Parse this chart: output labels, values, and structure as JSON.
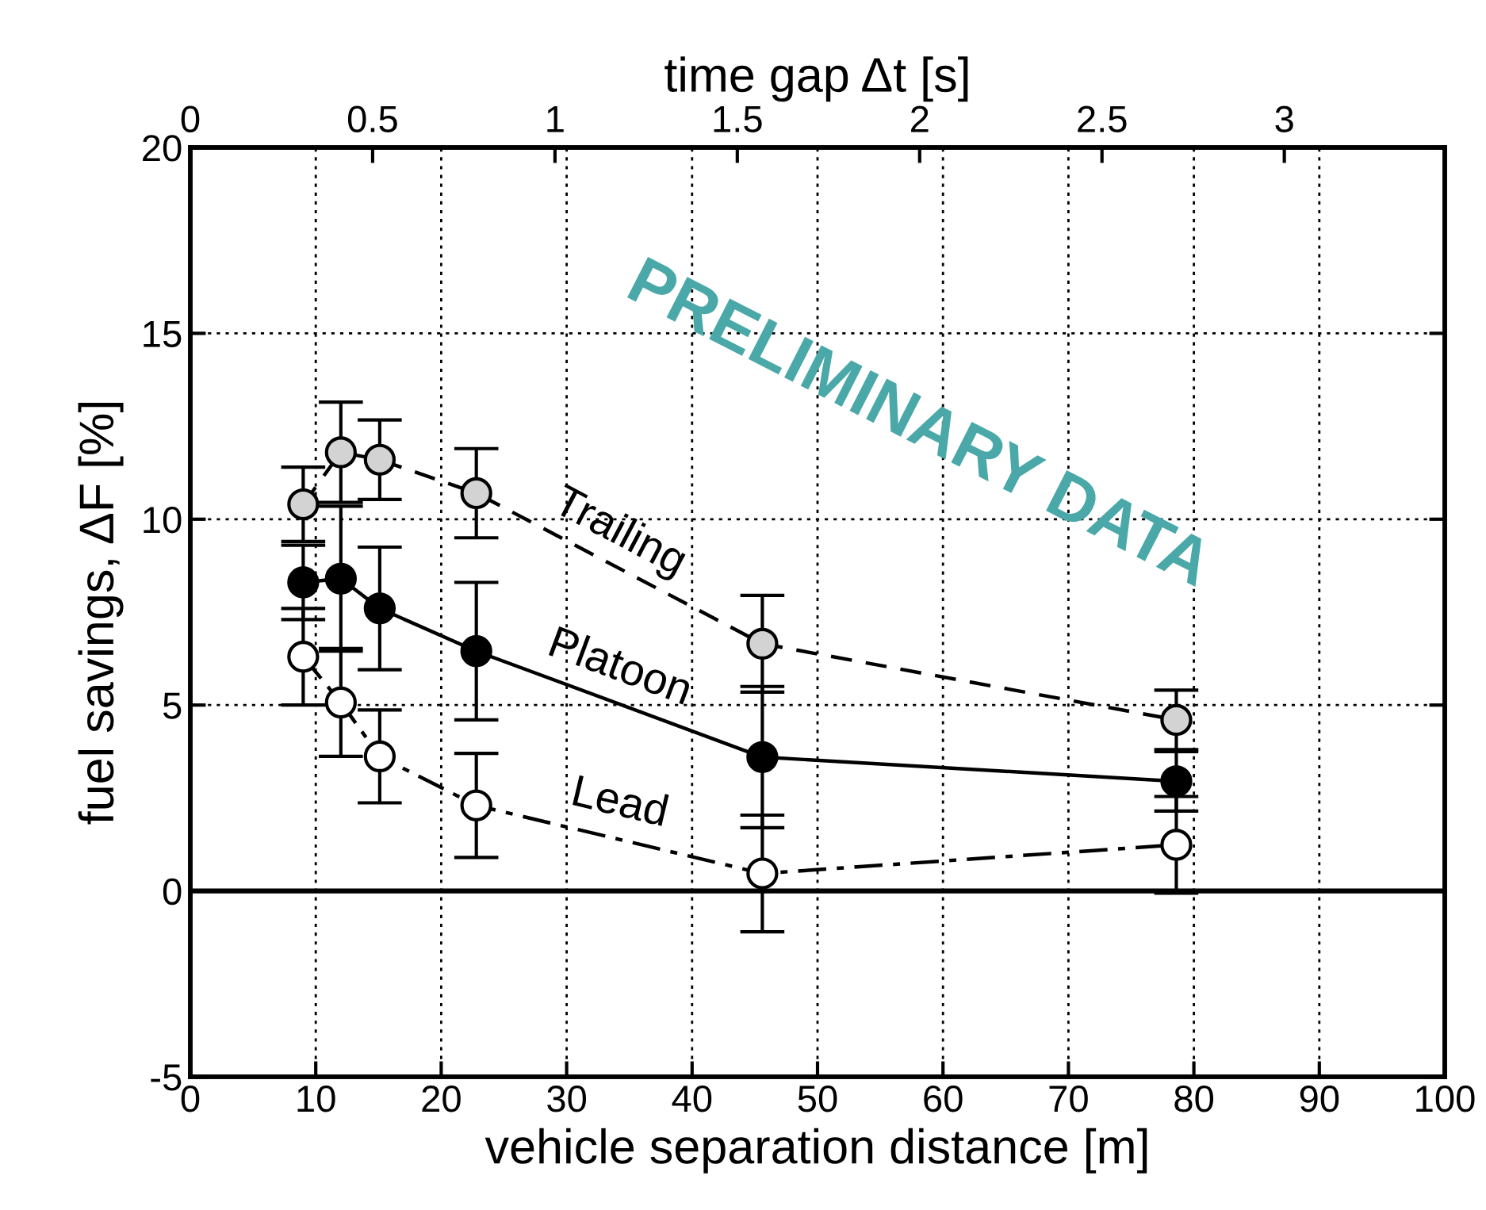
{
  "chart_data": {
    "type": "line",
    "x2label": "time gap Δt [s]",
    "xlabel": "vehicle separation distance [m]",
    "ylabel": "fuel savings, ΔF [%]",
    "xlim": [
      0,
      100
    ],
    "xticks": [
      0,
      10,
      20,
      30,
      40,
      50,
      60,
      70,
      80,
      90,
      100
    ],
    "ylim": [
      -5,
      20
    ],
    "yticks": [
      -5,
      0,
      5,
      10,
      15,
      20
    ],
    "x2lim": [
      0,
      3.44
    ],
    "x2ticks": [
      0,
      0.5,
      1,
      1.5,
      2,
      2.5,
      3
    ],
    "grid": true,
    "marker": "circle",
    "ref_lines": [
      {
        "axis": "y",
        "value": 0,
        "color": "#000000",
        "line_style": "solid"
      }
    ],
    "annotations": [
      "PRELIMINARY DATA"
    ],
    "series": [
      {
        "name": "Trailing",
        "color": "#d3d3d3",
        "line_style": "dashed",
        "x": [
          9.0,
          12.0,
          15.1,
          22.8,
          45.6,
          78.6
        ],
        "values": [
          10.4,
          11.8,
          11.6,
          10.7,
          6.65,
          4.6
        ],
        "errors": [
          1.0,
          1.35,
          1.07,
          1.2,
          1.3,
          0.8
        ]
      },
      {
        "name": "Platoon",
        "color": "#000000",
        "line_style": "solid",
        "x": [
          9.0,
          12.0,
          15.1,
          22.8,
          45.6,
          78.6
        ],
        "values": [
          8.3,
          8.4,
          7.6,
          6.45,
          3.6,
          2.95
        ],
        "errors": [
          1.0,
          1.95,
          1.65,
          1.85,
          1.9,
          0.8
        ]
      },
      {
        "name": "Lead",
        "color": "#ffffff",
        "line_style": "dashdot",
        "x": [
          9.0,
          12.0,
          15.1,
          22.8,
          45.6,
          78.6
        ],
        "values": [
          6.3,
          5.07,
          3.62,
          2.3,
          0.47,
          1.24
        ],
        "errors": [
          1.3,
          1.45,
          1.25,
          1.4,
          1.57,
          1.3
        ]
      }
    ]
  }
}
